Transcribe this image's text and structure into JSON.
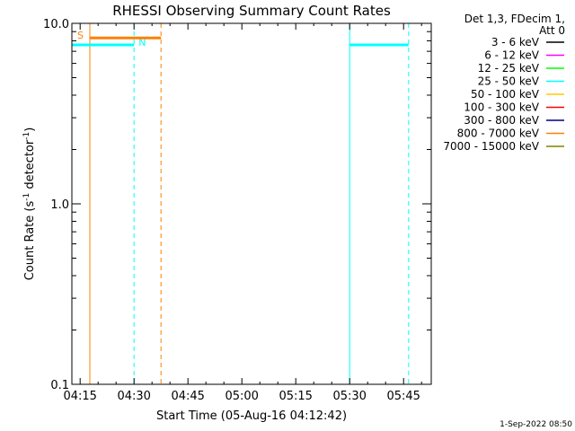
{
  "chart_data": {
    "type": "line",
    "title": "RHESSI Observing Summary Count Rates",
    "xlabel": "Start Time (05-Aug-16 04:12:42)",
    "ylabel_parts": {
      "main": "Count Rate (s",
      "exp1": "-1",
      "mid": " detector",
      "exp2": "-1",
      "end": ")"
    },
    "y_scale": "log",
    "ylim": [
      0.1,
      10.0
    ],
    "y_ticks": [
      {
        "value": 0.1,
        "label": "0.1"
      },
      {
        "value": 1.0,
        "label": "1.0"
      },
      {
        "value": 10.0,
        "label": "10.0"
      }
    ],
    "x_range_minutes": [
      252.7,
      352.7
    ],
    "x_ticks": [
      {
        "value": 255,
        "label": "04:15"
      },
      {
        "value": 270,
        "label": "04:30"
      },
      {
        "value": 285,
        "label": "04:45"
      },
      {
        "value": 300,
        "label": "05:00"
      },
      {
        "value": 315,
        "label": "05:15"
      },
      {
        "value": 330,
        "label": "05:30"
      },
      {
        "value": 345,
        "label": "05:45"
      }
    ],
    "legend_header": [
      "Det 1,3, FDecim 1,",
      "Att 0"
    ],
    "legend_placement": "right",
    "series": [
      {
        "name": "3 - 6 keV",
        "color": "#000000"
      },
      {
        "name": "6 - 12 keV",
        "color": "#ff00ff"
      },
      {
        "name": "12 - 25 keV",
        "color": "#00ff00"
      },
      {
        "name": "25 - 50 keV",
        "color": "#00ffff"
      },
      {
        "name": "50 - 100 keV",
        "color": "#ffcc00"
      },
      {
        "name": "100 - 300 keV",
        "color": "#ff0000"
      },
      {
        "name": "300 - 800 keV",
        "color": "#000080"
      },
      {
        "name": "800 - 7000 keV",
        "color": "#ff8000"
      },
      {
        "name": "7000 - 15000 keV",
        "color": "#808000"
      }
    ],
    "segments": [
      {
        "color": "#00ffff",
        "x": [
          252.7,
          270.0
        ],
        "y": 7.6
      },
      {
        "color": "#ff8000",
        "x": [
          257.7,
          277.5
        ],
        "y": 8.3
      },
      {
        "color": "#00ffff",
        "x": [
          330.0,
          346.4
        ],
        "y": 7.6
      }
    ],
    "vlines": [
      {
        "color": "#ff8000",
        "x": 257.7,
        "style": "solid",
        "label": "S"
      },
      {
        "color": "#00ffff",
        "x": 270.0,
        "style": "dashed",
        "label": "N"
      },
      {
        "color": "#ff8000",
        "x": 277.5,
        "style": "dashed",
        "label": ""
      },
      {
        "color": "#00ffff",
        "x": 330.0,
        "style": "solid",
        "label": ""
      },
      {
        "color": "#00ffff",
        "x": 346.4,
        "style": "dashed",
        "label": ""
      }
    ],
    "timestamp": "1-Sep-2022 08:50"
  }
}
